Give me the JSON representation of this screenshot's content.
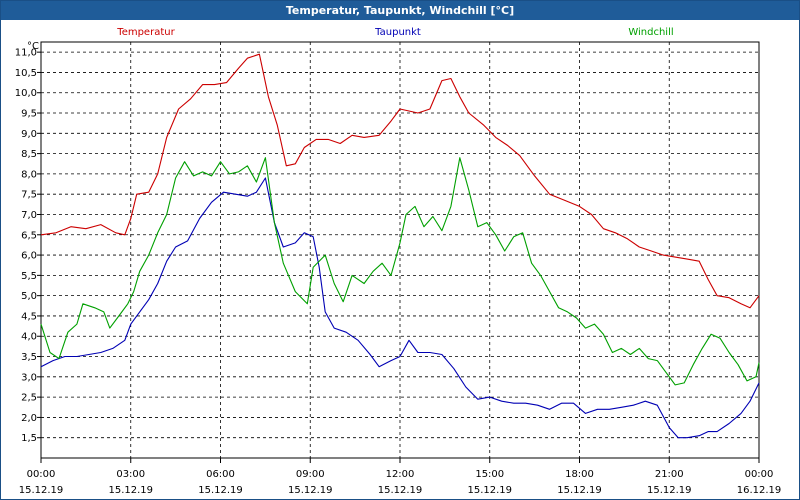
{
  "window": {
    "title": "Temperatur, Taupunkt, Windchill [°C]"
  },
  "chart_data": {
    "type": "line",
    "title": "Temperatur, Taupunkt, Windchill [°C]",
    "ylabel": "°C",
    "ylim": [
      1.0,
      11.25
    ],
    "y_ticks": [
      "11,0",
      "10,5",
      "10,0",
      "9,5",
      "9,0",
      "8,5",
      "8,0",
      "7,5",
      "7,0",
      "6,5",
      "6,0",
      "5,5",
      "5,0",
      "4,5",
      "4,0",
      "3,5",
      "3,0",
      "2,5",
      "2,0",
      "1,5"
    ],
    "x_range_hours": [
      0,
      24
    ],
    "x_ticks": [
      {
        "time": "00:00",
        "date": "15.12.19"
      },
      {
        "time": "03:00",
        "date": "15.12.19"
      },
      {
        "time": "06:00",
        "date": "15.12.19"
      },
      {
        "time": "09:00",
        "date": "15.12.19"
      },
      {
        "time": "12:00",
        "date": "15.12.19"
      },
      {
        "time": "15:00",
        "date": "15.12.19"
      },
      {
        "time": "18:00",
        "date": "15.12.19"
      },
      {
        "time": "21:00",
        "date": "15.12.19"
      },
      {
        "time": "00:00",
        "date": "16.12.19"
      }
    ],
    "grid": true,
    "legend_position": "top",
    "series": [
      {
        "name": "Temperatur",
        "color": "#cc0000",
        "points": [
          [
            0.0,
            6.5
          ],
          [
            0.5,
            6.55
          ],
          [
            1.0,
            6.7
          ],
          [
            1.5,
            6.65
          ],
          [
            2.0,
            6.75
          ],
          [
            2.5,
            6.55
          ],
          [
            2.8,
            6.5
          ],
          [
            3.0,
            6.9
          ],
          [
            3.2,
            7.5
          ],
          [
            3.6,
            7.55
          ],
          [
            3.9,
            8.0
          ],
          [
            4.2,
            8.9
          ],
          [
            4.6,
            9.6
          ],
          [
            5.0,
            9.85
          ],
          [
            5.4,
            10.2
          ],
          [
            5.8,
            10.2
          ],
          [
            6.2,
            10.25
          ],
          [
            6.6,
            10.6
          ],
          [
            6.9,
            10.85
          ],
          [
            7.3,
            10.95
          ],
          [
            7.6,
            9.9
          ],
          [
            7.9,
            9.2
          ],
          [
            8.2,
            8.2
          ],
          [
            8.5,
            8.25
          ],
          [
            8.8,
            8.65
          ],
          [
            9.2,
            8.85
          ],
          [
            9.6,
            8.85
          ],
          [
            10.0,
            8.75
          ],
          [
            10.4,
            8.95
          ],
          [
            10.8,
            8.9
          ],
          [
            11.3,
            8.95
          ],
          [
            11.7,
            9.3
          ],
          [
            12.0,
            9.6
          ],
          [
            12.3,
            9.55
          ],
          [
            12.6,
            9.5
          ],
          [
            13.0,
            9.6
          ],
          [
            13.4,
            10.3
          ],
          [
            13.7,
            10.35
          ],
          [
            14.0,
            9.9
          ],
          [
            14.3,
            9.5
          ],
          [
            14.8,
            9.2
          ],
          [
            15.2,
            8.9
          ],
          [
            15.6,
            8.7
          ],
          [
            16.0,
            8.45
          ],
          [
            16.5,
            7.95
          ],
          [
            17.0,
            7.5
          ],
          [
            17.5,
            7.35
          ],
          [
            18.0,
            7.2
          ],
          [
            18.4,
            7.0
          ],
          [
            18.8,
            6.65
          ],
          [
            19.2,
            6.55
          ],
          [
            19.6,
            6.4
          ],
          [
            20.0,
            6.2
          ],
          [
            20.4,
            6.1
          ],
          [
            20.8,
            6.0
          ],
          [
            21.2,
            5.95
          ],
          [
            21.6,
            5.9
          ],
          [
            22.0,
            5.85
          ],
          [
            22.3,
            5.4
          ],
          [
            22.6,
            5.0
          ],
          [
            23.0,
            4.95
          ],
          [
            23.4,
            4.8
          ],
          [
            23.7,
            4.7
          ],
          [
            24.0,
            5.0
          ]
        ]
      },
      {
        "name": "Taupunkt",
        "color": "#0000b4",
        "points": [
          [
            0.0,
            3.25
          ],
          [
            0.4,
            3.4
          ],
          [
            0.8,
            3.5
          ],
          [
            1.2,
            3.5
          ],
          [
            1.6,
            3.55
          ],
          [
            2.0,
            3.6
          ],
          [
            2.4,
            3.7
          ],
          [
            2.8,
            3.9
          ],
          [
            3.0,
            4.3
          ],
          [
            3.3,
            4.6
          ],
          [
            3.6,
            4.9
          ],
          [
            3.9,
            5.3
          ],
          [
            4.2,
            5.85
          ],
          [
            4.5,
            6.2
          ],
          [
            4.9,
            6.35
          ],
          [
            5.3,
            6.9
          ],
          [
            5.7,
            7.3
          ],
          [
            6.1,
            7.55
          ],
          [
            6.5,
            7.5
          ],
          [
            6.9,
            7.45
          ],
          [
            7.2,
            7.55
          ],
          [
            7.5,
            7.9
          ],
          [
            7.8,
            6.8
          ],
          [
            8.1,
            6.2
          ],
          [
            8.5,
            6.3
          ],
          [
            8.8,
            6.55
          ],
          [
            9.1,
            6.45
          ],
          [
            9.3,
            5.7
          ],
          [
            9.5,
            4.6
          ],
          [
            9.8,
            4.2
          ],
          [
            10.2,
            4.1
          ],
          [
            10.6,
            3.9
          ],
          [
            11.0,
            3.55
          ],
          [
            11.3,
            3.25
          ],
          [
            11.7,
            3.4
          ],
          [
            12.0,
            3.5
          ],
          [
            12.3,
            3.9
          ],
          [
            12.6,
            3.6
          ],
          [
            13.0,
            3.6
          ],
          [
            13.4,
            3.55
          ],
          [
            13.8,
            3.2
          ],
          [
            14.2,
            2.75
          ],
          [
            14.6,
            2.45
          ],
          [
            15.0,
            2.5
          ],
          [
            15.4,
            2.4
          ],
          [
            15.8,
            2.35
          ],
          [
            16.2,
            2.35
          ],
          [
            16.6,
            2.3
          ],
          [
            17.0,
            2.2
          ],
          [
            17.4,
            2.35
          ],
          [
            17.8,
            2.35
          ],
          [
            18.2,
            2.1
          ],
          [
            18.6,
            2.2
          ],
          [
            19.0,
            2.2
          ],
          [
            19.4,
            2.25
          ],
          [
            19.8,
            2.3
          ],
          [
            20.2,
            2.4
          ],
          [
            20.6,
            2.3
          ],
          [
            21.0,
            1.75
          ],
          [
            21.3,
            1.5
          ],
          [
            21.6,
            1.5
          ],
          [
            22.0,
            1.55
          ],
          [
            22.3,
            1.65
          ],
          [
            22.6,
            1.65
          ],
          [
            23.0,
            1.85
          ],
          [
            23.4,
            2.1
          ],
          [
            23.7,
            2.4
          ],
          [
            24.0,
            2.85
          ]
        ]
      },
      {
        "name": "Windchill",
        "color": "#00a000",
        "points": [
          [
            0.0,
            4.3
          ],
          [
            0.3,
            3.6
          ],
          [
            0.6,
            3.45
          ],
          [
            0.9,
            4.1
          ],
          [
            1.2,
            4.3
          ],
          [
            1.4,
            4.8
          ],
          [
            1.8,
            4.7
          ],
          [
            2.1,
            4.6
          ],
          [
            2.3,
            4.2
          ],
          [
            2.6,
            4.5
          ],
          [
            2.9,
            4.8
          ],
          [
            3.1,
            5.1
          ],
          [
            3.3,
            5.6
          ],
          [
            3.6,
            6.0
          ],
          [
            3.9,
            6.55
          ],
          [
            4.2,
            7.0
          ],
          [
            4.5,
            7.9
          ],
          [
            4.8,
            8.3
          ],
          [
            5.1,
            7.95
          ],
          [
            5.4,
            8.05
          ],
          [
            5.7,
            7.95
          ],
          [
            6.0,
            8.3
          ],
          [
            6.3,
            8.0
          ],
          [
            6.6,
            8.05
          ],
          [
            6.9,
            8.2
          ],
          [
            7.2,
            7.8
          ],
          [
            7.5,
            8.4
          ],
          [
            7.8,
            6.8
          ],
          [
            8.1,
            5.8
          ],
          [
            8.5,
            5.1
          ],
          [
            8.9,
            4.8
          ],
          [
            9.1,
            5.7
          ],
          [
            9.5,
            6.0
          ],
          [
            9.8,
            5.3
          ],
          [
            10.1,
            4.85
          ],
          [
            10.4,
            5.5
          ],
          [
            10.8,
            5.3
          ],
          [
            11.1,
            5.6
          ],
          [
            11.4,
            5.8
          ],
          [
            11.7,
            5.5
          ],
          [
            12.0,
            6.3
          ],
          [
            12.2,
            7.0
          ],
          [
            12.5,
            7.2
          ],
          [
            12.8,
            6.7
          ],
          [
            13.1,
            6.95
          ],
          [
            13.4,
            6.6
          ],
          [
            13.7,
            7.2
          ],
          [
            14.0,
            8.4
          ],
          [
            14.3,
            7.6
          ],
          [
            14.6,
            6.7
          ],
          [
            14.9,
            6.8
          ],
          [
            15.2,
            6.5
          ],
          [
            15.5,
            6.1
          ],
          [
            15.8,
            6.45
          ],
          [
            16.1,
            6.55
          ],
          [
            16.4,
            5.8
          ],
          [
            16.7,
            5.5
          ],
          [
            17.0,
            5.1
          ],
          [
            17.3,
            4.7
          ],
          [
            17.6,
            4.6
          ],
          [
            17.9,
            4.45
          ],
          [
            18.2,
            4.2
          ],
          [
            18.5,
            4.3
          ],
          [
            18.8,
            4.05
          ],
          [
            19.1,
            3.6
          ],
          [
            19.4,
            3.7
          ],
          [
            19.7,
            3.55
          ],
          [
            20.0,
            3.7
          ],
          [
            20.3,
            3.45
          ],
          [
            20.6,
            3.4
          ],
          [
            20.9,
            3.1
          ],
          [
            21.2,
            2.8
          ],
          [
            21.5,
            2.85
          ],
          [
            21.8,
            3.3
          ],
          [
            22.1,
            3.7
          ],
          [
            22.4,
            4.05
          ],
          [
            22.7,
            3.95
          ],
          [
            23.0,
            3.6
          ],
          [
            23.3,
            3.3
          ],
          [
            23.6,
            2.9
          ],
          [
            23.9,
            3.0
          ],
          [
            24.0,
            3.35
          ]
        ]
      }
    ]
  }
}
